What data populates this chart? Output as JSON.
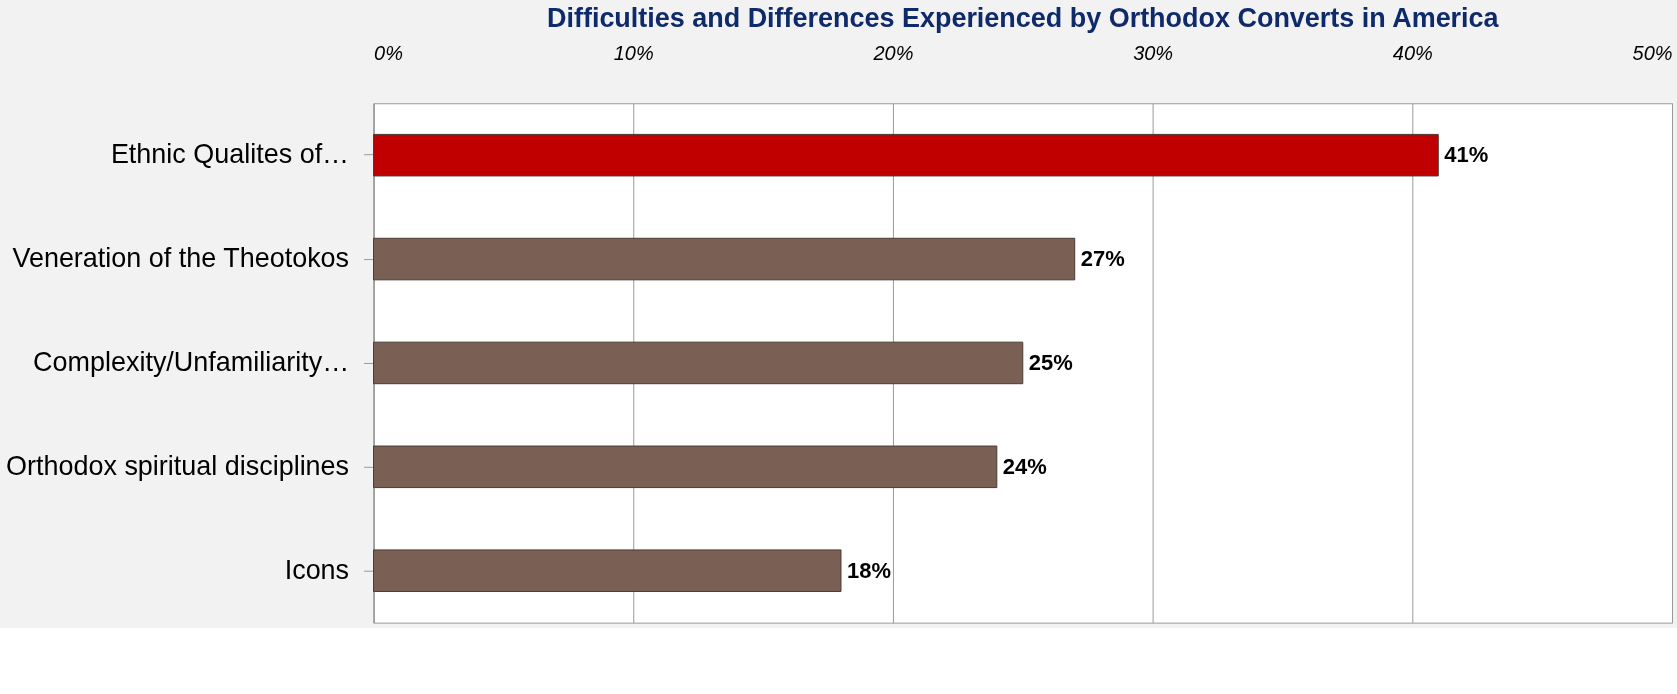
{
  "chart_data": {
    "type": "bar",
    "orientation": "horizontal",
    "title": "Difficulties and Differences  Experienced by Orthodox Converts in America",
    "categories": [
      "Ethnic Qualites of…",
      "Veneration of the Theotokos",
      "Complexity/Unfamiliarity…",
      "Orthodox spiritual disciplines",
      "Icons"
    ],
    "values": [
      41,
      27,
      25,
      24,
      18
    ],
    "colors": [
      "#c00000",
      "#7a5f55",
      "#7a5f55",
      "#7a5f55",
      "#7a5f55"
    ],
    "value_labels": [
      "41%",
      "27%",
      "25%",
      "24%",
      "18%"
    ],
    "xlim": [
      0,
      50
    ],
    "xticks": [
      {
        "value": 0,
        "label": "0%"
      },
      {
        "value": 10,
        "label": "10%"
      },
      {
        "value": 20,
        "label": "20%"
      },
      {
        "value": 30,
        "label": "30%"
      },
      {
        "value": 40,
        "label": "40%"
      },
      {
        "value": 50,
        "label": "50%"
      }
    ],
    "grid": "x"
  }
}
